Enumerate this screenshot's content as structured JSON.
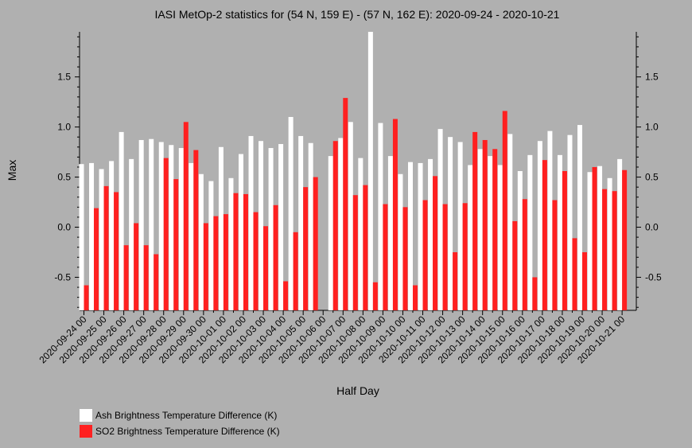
{
  "chart_data": {
    "type": "bar",
    "title": "IASI MetOp-2 statistics for (54 N, 159 E) - (57 N, 162 E): 2020-09-24 - 2020-10-21",
    "xlabel": "Half Day",
    "ylabel": "Max",
    "ylim": [
      -0.83,
      1.95
    ],
    "yticks": [
      -0.5,
      0.0,
      0.5,
      1.0,
      1.5
    ],
    "ytick_labels": [
      "-0.5",
      "0.0",
      "0.5",
      "1.0",
      "1.5"
    ],
    "categories": [
      "2020-09-24 00",
      "2020-09-24 12",
      "2020-09-25 00",
      "2020-09-25 12",
      "2020-09-26 00",
      "2020-09-26 12",
      "2020-09-27 00",
      "2020-09-27 12",
      "2020-09-28 00",
      "2020-09-28 12",
      "2020-09-29 00",
      "2020-09-29 12",
      "2020-09-30 00",
      "2020-09-30 12",
      "2020-10-01 00",
      "2020-10-01 12",
      "2020-10-02 00",
      "2020-10-02 12",
      "2020-10-03 00",
      "2020-10-03 12",
      "2020-10-04 00",
      "2020-10-04 12",
      "2020-10-05 00",
      "2020-10-05 12",
      "2020-10-06 00",
      "2020-10-06 12",
      "2020-10-07 00",
      "2020-10-07 12",
      "2020-10-08 00",
      "2020-10-08 12",
      "2020-10-09 00",
      "2020-10-09 12",
      "2020-10-10 00",
      "2020-10-10 12",
      "2020-10-11 00",
      "2020-10-11 12",
      "2020-10-12 00",
      "2020-10-12 12",
      "2020-10-13 00",
      "2020-10-13 12",
      "2020-10-14 00",
      "2020-10-14 12",
      "2020-10-15 00",
      "2020-10-15 12",
      "2020-10-16 00",
      "2020-10-16 12",
      "2020-10-17 00",
      "2020-10-17 12",
      "2020-10-18 00",
      "2020-10-18 12",
      "2020-10-19 00",
      "2020-10-19 12",
      "2020-10-20 00",
      "2020-10-20 12",
      "2020-10-21 00"
    ],
    "x_tick_labels": [
      "2020-09-24 00",
      "2020-09-25 00",
      "2020-09-26 00",
      "2020-09-27 00",
      "2020-09-28 00",
      "2020-09-29 00",
      "2020-09-30 00",
      "2020-10-01 00",
      "2020-10-02 00",
      "2020-10-03 00",
      "2020-10-04 00",
      "2020-10-05 00",
      "2020-10-06 00",
      "2020-10-07 00",
      "2020-10-08 00",
      "2020-10-09 00",
      "2020-10-10 00",
      "2020-10-11 00",
      "2020-10-12 00",
      "2020-10-13 00",
      "2020-10-14 00",
      "2020-10-15 00",
      "2020-10-16 00",
      "2020-10-17 00",
      "2020-10-18 00",
      "2020-10-19 00",
      "2020-10-20 00",
      "2020-10-21 00"
    ],
    "series": [
      {
        "name": "Ash Brightness Temperature Difference (K)",
        "color": "#ffffff",
        "values": [
          0.63,
          0.64,
          0.58,
          0.66,
          0.95,
          0.68,
          0.87,
          0.88,
          0.85,
          0.82,
          0.79,
          0.64,
          0.53,
          0.46,
          0.8,
          0.49,
          0.73,
          0.91,
          0.86,
          0.79,
          0.83,
          1.1,
          0.91,
          0.84,
          null,
          0.71,
          0.89,
          1.05,
          0.69,
          1.95,
          1.04,
          0.71,
          0.53,
          0.65,
          0.64,
          0.68,
          0.98,
          0.9,
          0.85,
          0.62,
          0.78,
          0.71,
          0.62,
          0.93,
          0.56,
          0.72,
          0.86,
          0.96,
          0.72,
          0.92,
          1.02,
          0.55,
          0.61,
          0.49,
          0.68
        ]
      },
      {
        "name": "SO2 Brightness Temperature Difference (K)",
        "color": "#ff2020",
        "values": [
          -0.58,
          0.19,
          0.41,
          0.35,
          -0.18,
          0.04,
          -0.18,
          -0.27,
          0.69,
          0.48,
          1.05,
          0.77,
          0.04,
          0.11,
          0.13,
          0.34,
          0.33,
          0.15,
          0.01,
          0.22,
          -0.54,
          -0.05,
          0.4,
          0.5,
          null,
          0.86,
          1.29,
          0.32,
          0.42,
          -0.55,
          0.23,
          1.08,
          0.2,
          -0.58,
          0.27,
          0.51,
          0.23,
          -0.25,
          0.24,
          0.95,
          0.87,
          0.78,
          1.16,
          0.06,
          0.28,
          -0.5,
          0.67,
          0.27,
          0.56,
          -0.11,
          -0.25,
          0.6,
          0.38,
          0.36,
          0.57
        ]
      }
    ],
    "legend_position": "bottom-left",
    "grid": false
  }
}
